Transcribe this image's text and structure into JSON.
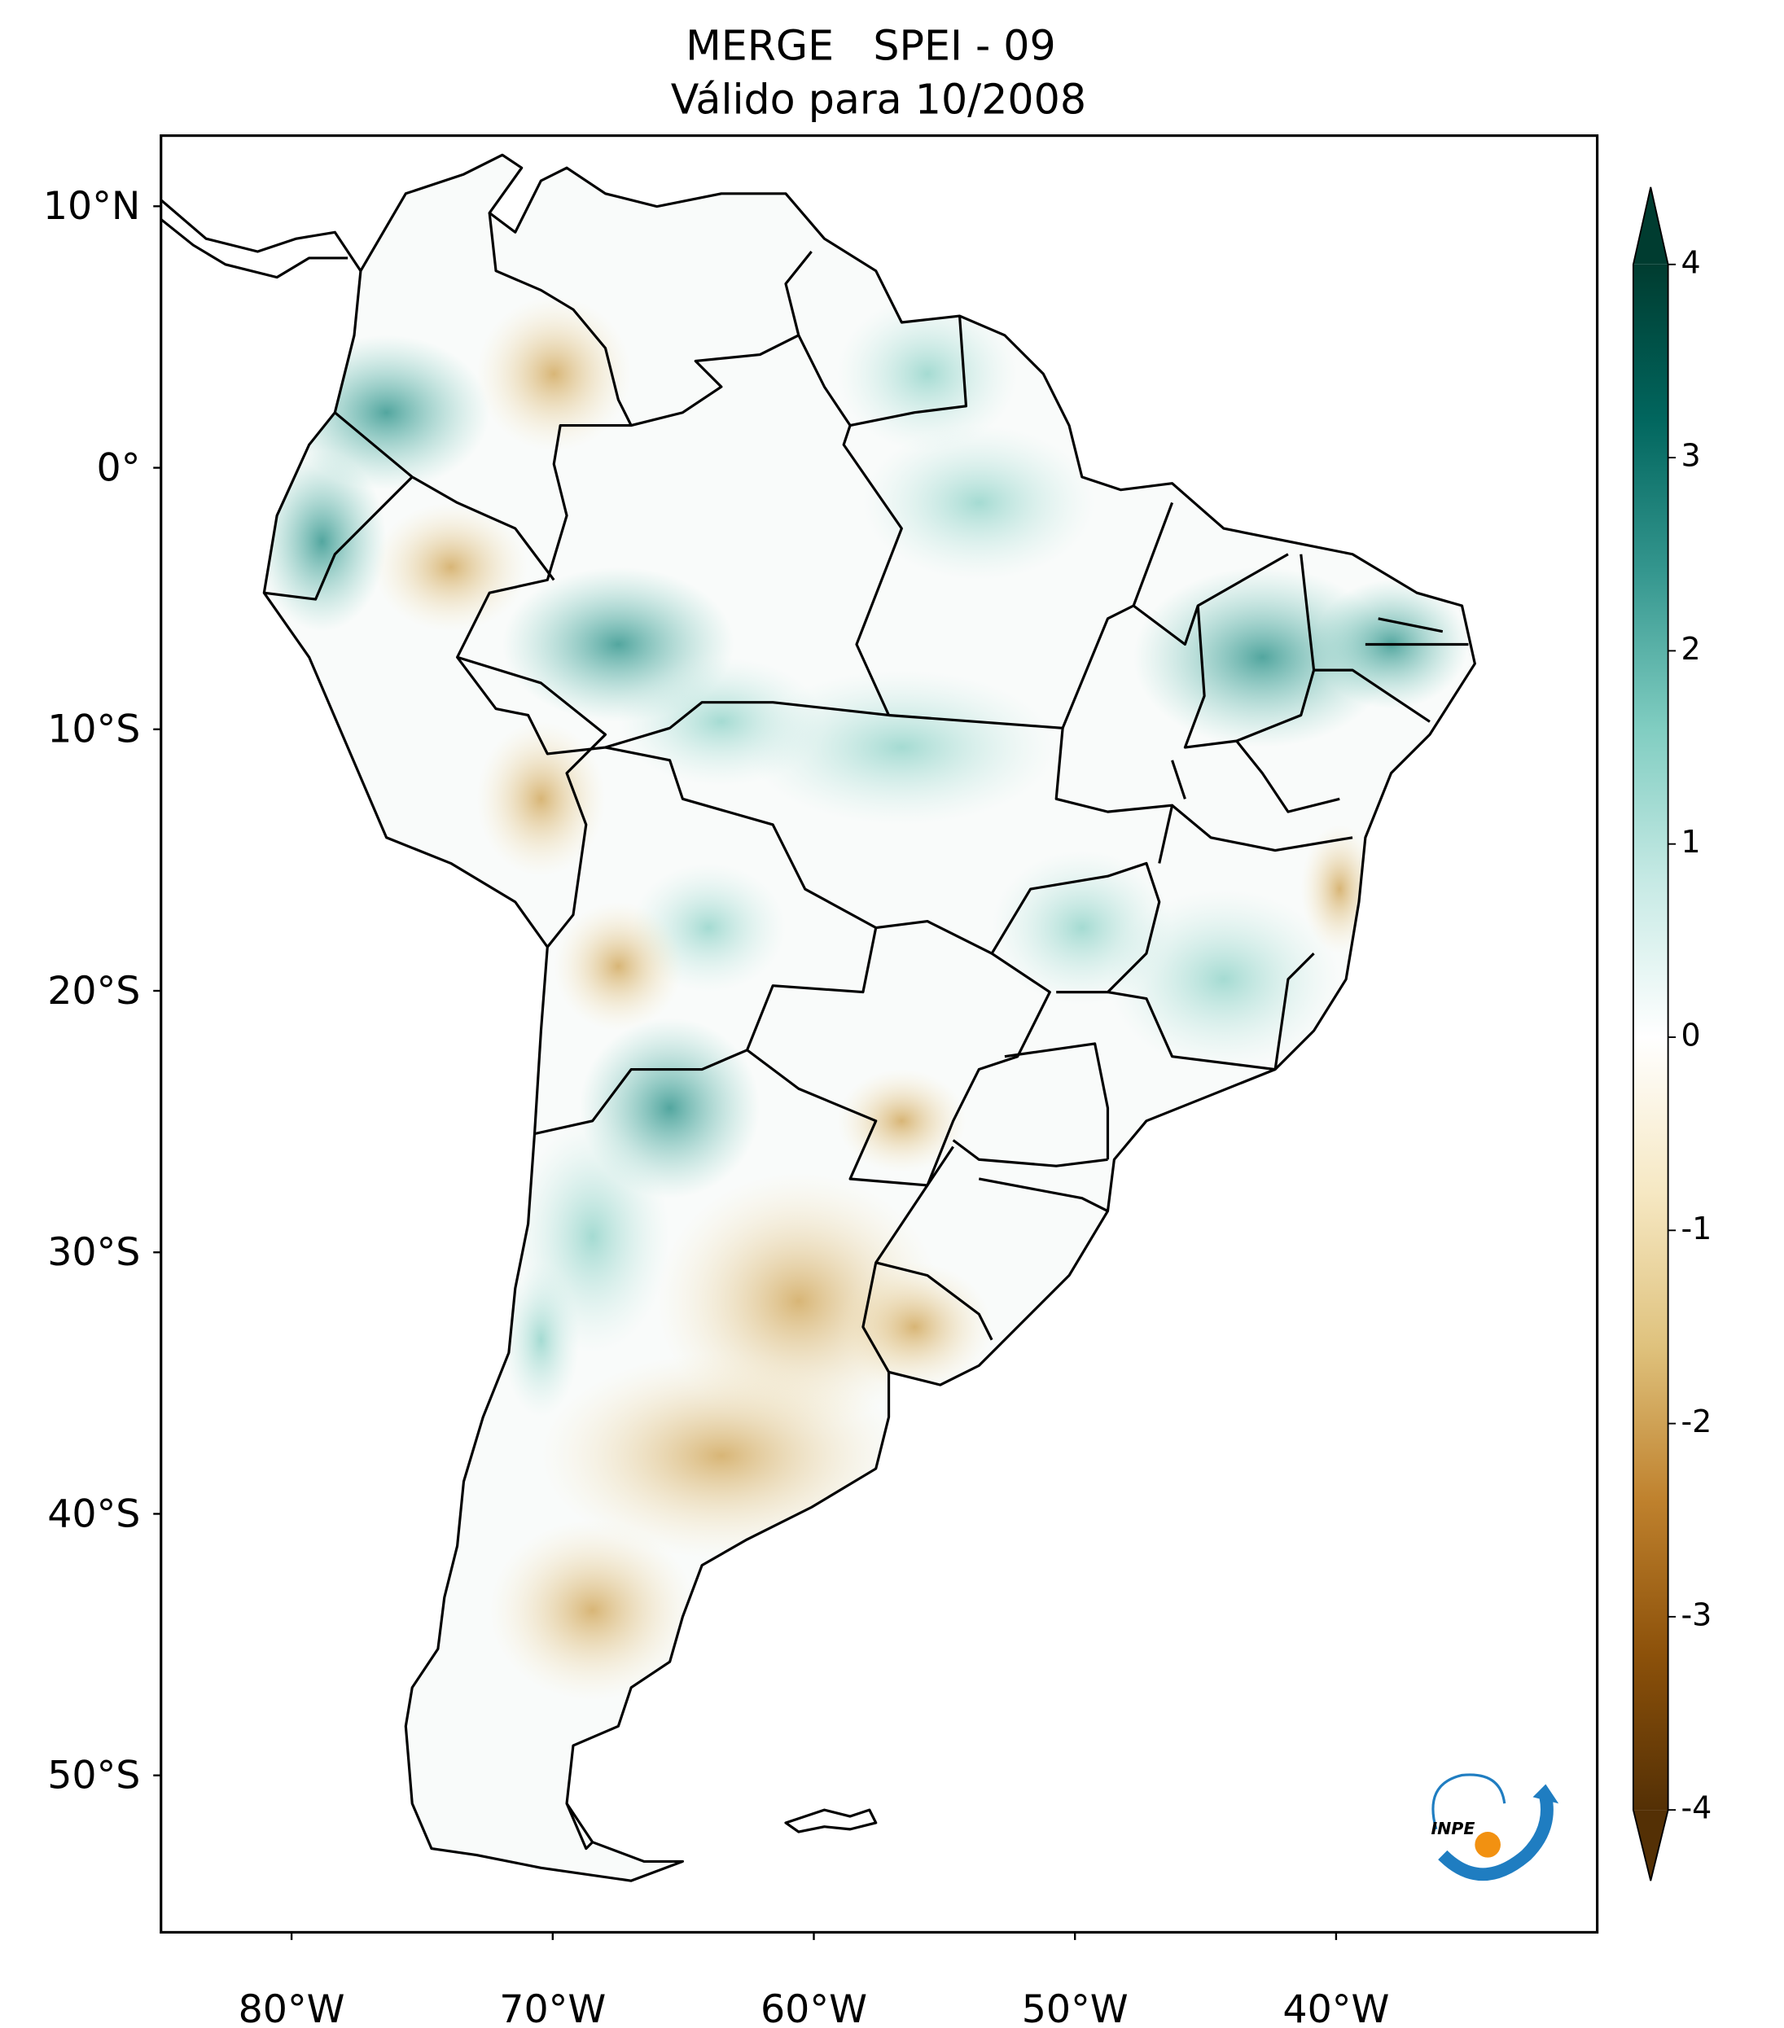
{
  "chart_data": {
    "type": "map",
    "title": "MERGE   SPEI - 09",
    "subtitle": "Válido para 10/2008",
    "xlim": [
      -85,
      -30
    ],
    "ylim": [
      -56,
      12.7
    ],
    "xticks": [
      {
        "value": -80,
        "label": "80°W"
      },
      {
        "value": -70,
        "label": "70°W"
      },
      {
        "value": -60,
        "label": "60°W"
      },
      {
        "value": -50,
        "label": "50°W"
      },
      {
        "value": -40,
        "label": "40°W"
      }
    ],
    "yticks": [
      {
        "value": 10,
        "label": "10°N"
      },
      {
        "value": 0,
        "label": "0°"
      },
      {
        "value": -10,
        "label": "10°S"
      },
      {
        "value": -20,
        "label": "20°S"
      },
      {
        "value": -30,
        "label": "30°S"
      },
      {
        "value": -40,
        "label": "40°S"
      },
      {
        "value": -50,
        "label": "50°S"
      }
    ],
    "colorbar": {
      "lim": [
        -4,
        4
      ],
      "ticks": [
        -4,
        -3,
        -2,
        -1,
        0,
        1,
        2,
        3,
        4
      ],
      "extend": "both",
      "colors": [
        "#543005",
        "#8c510a",
        "#bf812d",
        "#dfc27d",
        "#f6e8c3",
        "#ffffff",
        "#c7eae5",
        "#80cdc1",
        "#35978f",
        "#01665e",
        "#003c30"
      ]
    },
    "logo": "INPE"
  }
}
